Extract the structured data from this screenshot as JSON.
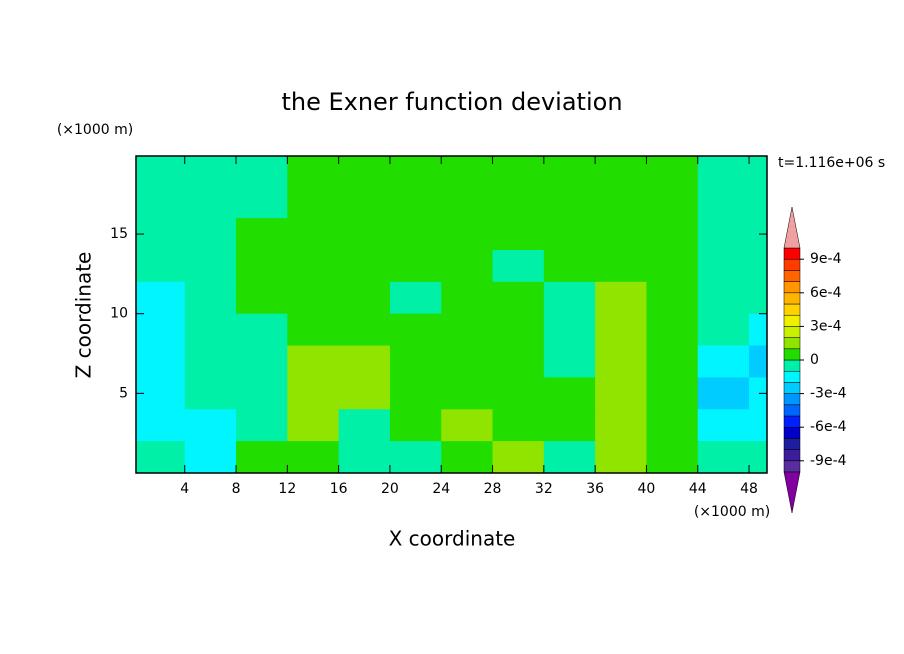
{
  "chart_data": {
    "type": "contour",
    "title": "the Exner function deviation",
    "x_label": "X coordinate",
    "y_label": "Z coordinate",
    "x_unit": "(×1000 m)",
    "y_unit": "(×1000 m)",
    "annotation": "t=1.116e+06 s",
    "xlim": [
      0.2,
      49.4
    ],
    "ylim": [
      0,
      19.9
    ],
    "xticks": [
      4,
      8,
      12,
      16,
      20,
      24,
      28,
      32,
      36,
      40,
      44,
      48
    ],
    "yticks": [
      5,
      10,
      15
    ],
    "x": [
      2,
      6,
      10,
      14,
      18,
      22,
      26,
      30,
      34,
      38,
      42,
      46,
      50
    ],
    "y": [
      19,
      17,
      15,
      13,
      11,
      9,
      7,
      5,
      3,
      1
    ],
    "z": [
      [
        -5e-05,
        -5e-05,
        -5e-05,
        5e-05,
        5e-05,
        5e-05,
        5e-05,
        5e-05,
        5e-05,
        5e-05,
        5e-05,
        -5e-05,
        -5e-05
      ],
      [
        -5e-05,
        -5e-05,
        -5e-05,
        5e-05,
        5e-05,
        5e-05,
        5e-05,
        5e-05,
        5e-05,
        5e-05,
        5e-05,
        -5e-05,
        -5e-05
      ],
      [
        -5e-05,
        -5e-05,
        5e-05,
        5e-05,
        5e-05,
        5e-05,
        5e-05,
        5e-05,
        5e-05,
        5e-05,
        5e-05,
        -5e-05,
        -5e-05
      ],
      [
        -5e-05,
        -5e-05,
        5e-05,
        5e-05,
        5e-05,
        5e-05,
        5e-05,
        -5e-05,
        5e-05,
        5e-05,
        5e-05,
        -5e-05,
        -5e-05
      ],
      [
        -0.00015,
        -5e-05,
        5e-05,
        5e-05,
        5e-05,
        -5e-05,
        5e-05,
        5e-05,
        -5e-05,
        0.00015,
        5e-05,
        -5e-05,
        -5e-05
      ],
      [
        -0.00015,
        -5e-05,
        -5e-05,
        5e-05,
        5e-05,
        5e-05,
        5e-05,
        5e-05,
        -5e-05,
        0.00015,
        5e-05,
        -5e-05,
        -0.00015
      ],
      [
        -0.00015,
        -5e-05,
        -5e-05,
        0.00015,
        0.00015,
        5e-05,
        5e-05,
        5e-05,
        -5e-05,
        0.00015,
        5e-05,
        -0.00015,
        -0.00025
      ],
      [
        -0.00015,
        -5e-05,
        -5e-05,
        0.00015,
        0.00015,
        5e-05,
        5e-05,
        5e-05,
        5e-05,
        0.00015,
        5e-05,
        -0.00025,
        -0.00015
      ],
      [
        -0.00015,
        -0.00015,
        -5e-05,
        0.00015,
        -5e-05,
        5e-05,
        0.00015,
        5e-05,
        5e-05,
        0.00015,
        5e-05,
        -0.00015,
        -0.00015
      ],
      [
        -5e-05,
        -0.00015,
        5e-05,
        5e-05,
        -5e-05,
        -5e-05,
        5e-05,
        0.00015,
        -5e-05,
        0.00015,
        5e-05,
        -5e-05,
        -5e-05
      ]
    ],
    "levels": [
      -0.001,
      -0.0009,
      -0.0008,
      -0.0007,
      -0.0006,
      -0.0005,
      -0.0004,
      -0.0003,
      -0.0002,
      -0.0001,
      0,
      0.0001,
      0.0002,
      0.0003,
      0.0004,
      0.0005,
      0.0006,
      0.0007,
      0.0008,
      0.0009,
      0.001
    ],
    "colors": [
      "#5a2da0",
      "#3c1e9c",
      "#1e1e9e",
      "#0000c8",
      "#0020ff",
      "#0064ff",
      "#0096ff",
      "#00ccff",
      "#00f5ff",
      "#00f0a8",
      "#22dd00",
      "#90e400",
      "#c8f000",
      "#f0f000",
      "#ffd200",
      "#ffb400",
      "#ff9600",
      "#ff6400",
      "#ff3c00",
      "#ff0000"
    ],
    "over_color": "#f0a0a0",
    "under_color": "#8000a0",
    "colorbar_ticks": [
      {
        "value": 0.0009,
        "label": "9e-4"
      },
      {
        "value": 0.0006,
        "label": "6e-4"
      },
      {
        "value": 0.0003,
        "label": "3e-4"
      },
      0,
      {
        "value": -0.0003,
        "label": "-3e-4"
      },
      {
        "value": -0.0006,
        "label": "-6e-4"
      },
      {
        "value": -0.0009,
        "label": "-9e-4"
      }
    ]
  }
}
